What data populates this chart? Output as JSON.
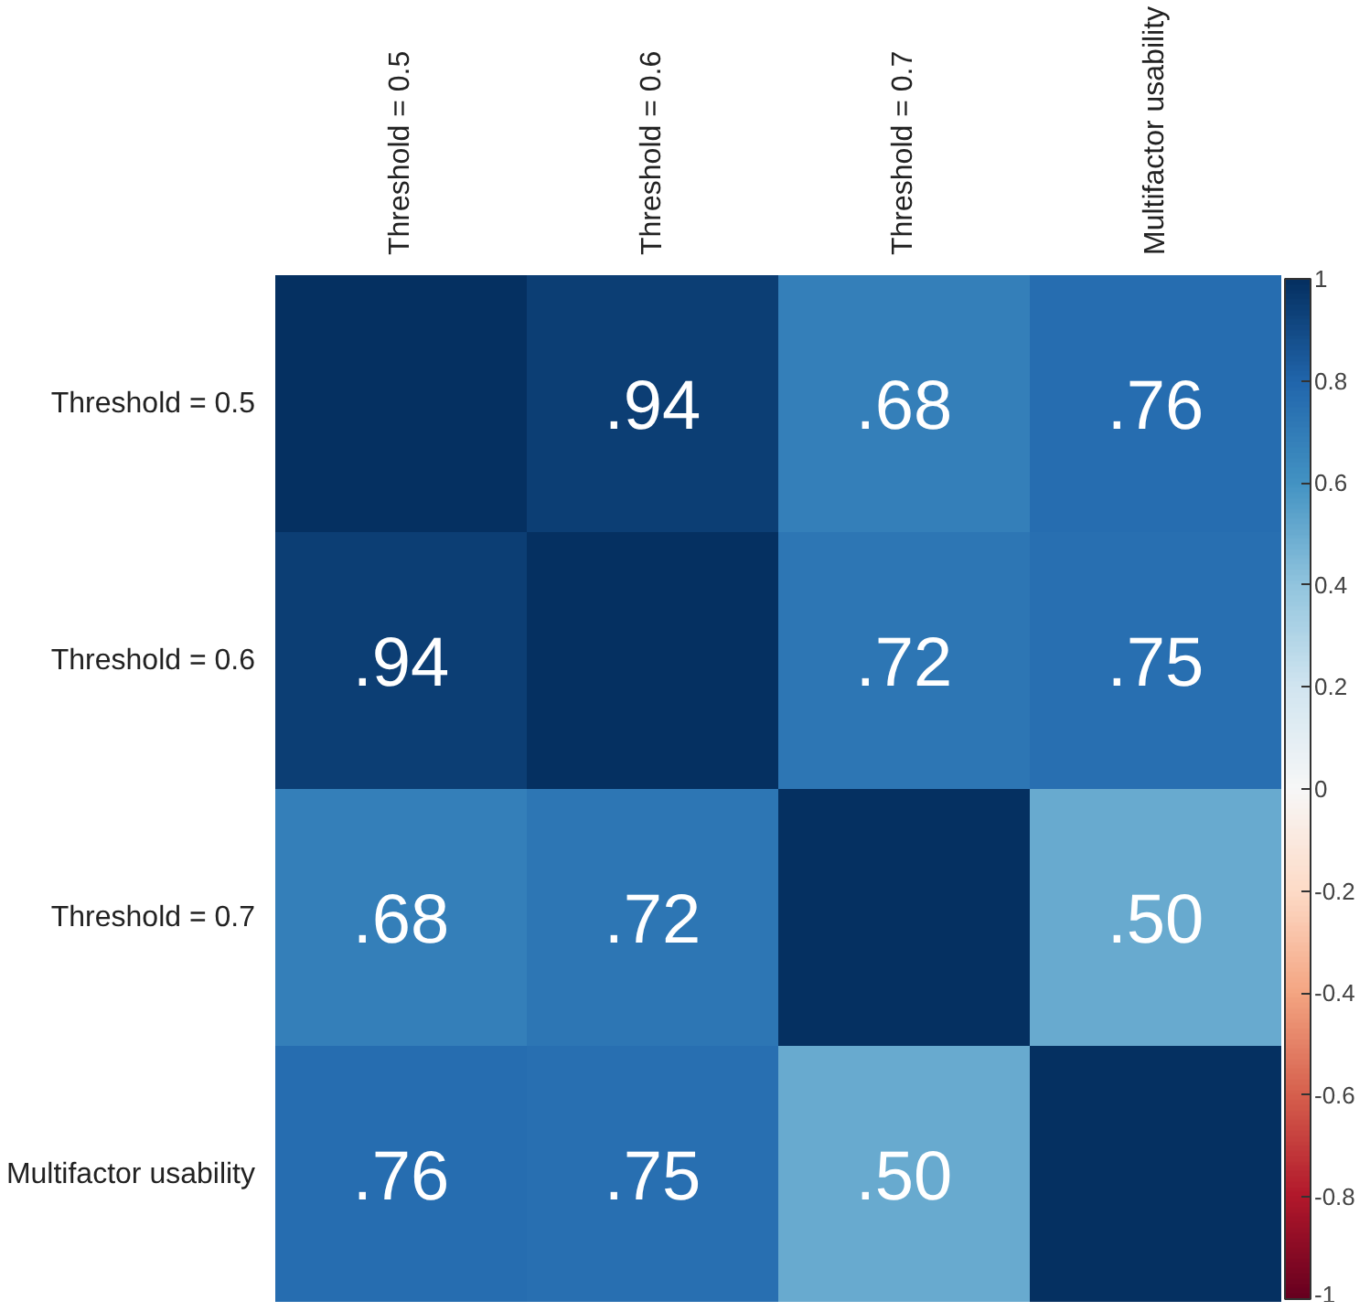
{
  "chart_data": {
    "type": "heatmap",
    "categories": [
      "Threshold = 0.5",
      "Threshold = 0.6",
      "Threshold = 0.7",
      "Multifactor usability"
    ],
    "y_categories": [
      "Threshold = 0.5",
      "Threshold = 0.6",
      "Threshold = 0.7",
      "Multifactor usability"
    ],
    "cells": [
      [
        1,
        0.94,
        0.68,
        0.76
      ],
      [
        0.94,
        1,
        0.72,
        0.75
      ],
      [
        0.68,
        0.72,
        1,
        0.5
      ],
      [
        0.76,
        0.75,
        0.5,
        1
      ]
    ],
    "cell_labels": [
      [
        null,
        ".94",
        ".68",
        ".76"
      ],
      [
        ".94",
        null,
        ".72",
        ".75"
      ],
      [
        ".68",
        ".72",
        null,
        ".50"
      ],
      [
        ".76",
        ".75",
        ".50",
        null
      ]
    ],
    "clim": [
      -1,
      1
    ],
    "cticks": [
      -1,
      -0.8,
      -0.6,
      -0.4,
      -0.2,
      0,
      0.2,
      0.4,
      0.6,
      0.8,
      1
    ]
  }
}
